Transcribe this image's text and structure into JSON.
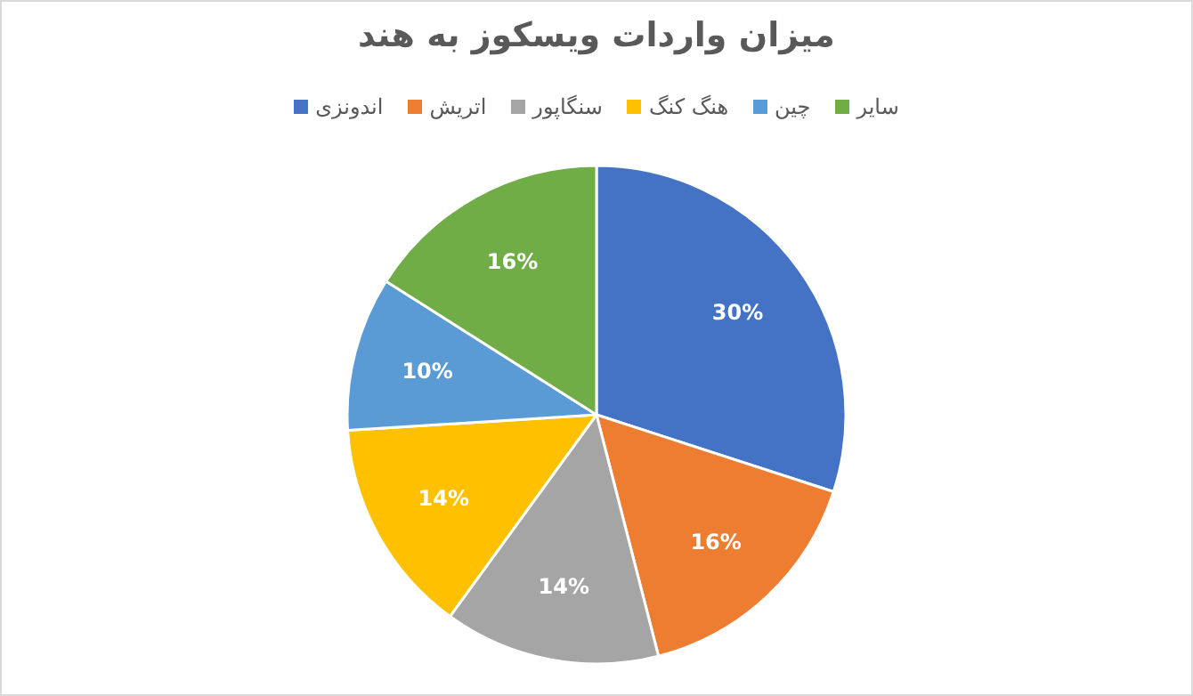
{
  "chart_data": {
    "type": "pie",
    "title": "میزان واردات ویسکوز به هند",
    "categories": [
      "اندونزی",
      "اتریش",
      "سنگاپور",
      "هنگ کنگ",
      "چین",
      "سایر"
    ],
    "values": [
      30,
      16,
      14,
      14,
      10,
      16
    ],
    "value_labels": [
      "30%",
      "16%",
      "14%",
      "14%",
      "10%",
      "16%"
    ],
    "colors": [
      "#4472c4",
      "#ed7d31",
      "#a5a5a5",
      "#ffc000",
      "#5b9bd5",
      "#70ad47"
    ],
    "legend": "top"
  }
}
